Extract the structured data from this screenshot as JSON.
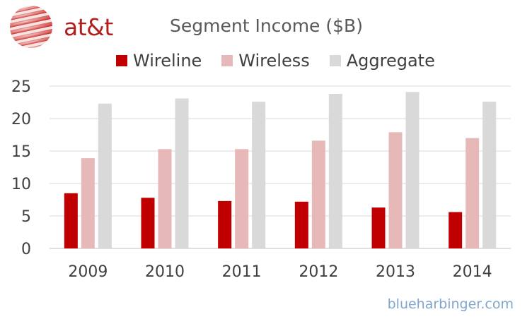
{
  "logo": {
    "text": "at&t",
    "globe_color": "#c9302c"
  },
  "chart_data": {
    "type": "bar",
    "title": "Segment Income ($B)",
    "categories": [
      "2009",
      "2010",
      "2011",
      "2012",
      "2013",
      "2014"
    ],
    "series": [
      {
        "name": "Wireline",
        "color": "#c00000",
        "values": [
          8.5,
          7.8,
          7.3,
          7.2,
          6.3,
          5.6
        ]
      },
      {
        "name": "Wireless",
        "color": "#e6b9b8",
        "values": [
          13.9,
          15.3,
          15.3,
          16.6,
          17.9,
          17.0
        ]
      },
      {
        "name": "Aggregate",
        "color": "#d9d9d9",
        "values": [
          22.3,
          23.1,
          22.6,
          23.8,
          24.1,
          22.6
        ]
      }
    ],
    "yticks": [
      "0",
      "5",
      "10",
      "15",
      "20",
      "25"
    ],
    "ylim": [
      0,
      25
    ],
    "xlabel": "",
    "ylabel": "",
    "grid": true,
    "legend_position": "top"
  },
  "watermark": "blueharbinger.com"
}
